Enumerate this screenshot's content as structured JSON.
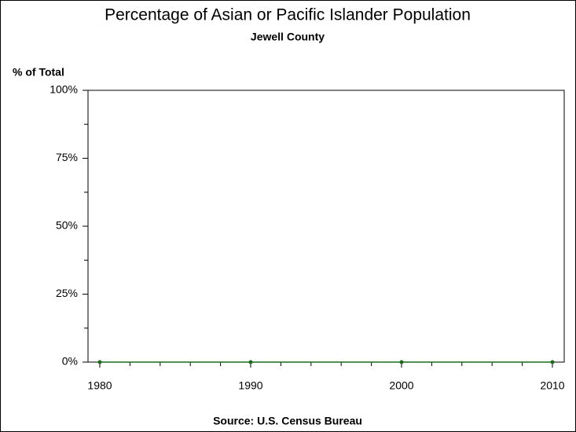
{
  "chart_data": {
    "type": "line",
    "title": "Percentage of Asian or Pacific Islander Population",
    "subtitle": "Jewell County",
    "y_label": "% of Total",
    "source": "Source: U.S. Census Bureau",
    "x": [
      1980,
      1990,
      2000,
      2010
    ],
    "series": [
      {
        "name": "Asian or Pacific Islander",
        "color": "#1a6b1a",
        "values": [
          0,
          0,
          0,
          0
        ]
      }
    ],
    "xlim": [
      1980,
      2010
    ],
    "xticks": [
      1980,
      1990,
      2000,
      2010
    ],
    "xminorticks": [
      1982,
      1984,
      1986,
      1988,
      1992,
      1994,
      1996,
      1998,
      2002,
      2004,
      2006,
      2008
    ],
    "ylim": [
      0,
      100
    ],
    "yticks": [
      {
        "value": 0,
        "label": "0%"
      },
      {
        "value": 25,
        "label": "25%"
      },
      {
        "value": 50,
        "label": "50%"
      },
      {
        "value": 75,
        "label": "75%"
      },
      {
        "value": 100,
        "label": "100%"
      }
    ],
    "yminorticks": [
      12.5,
      37.5,
      62.5,
      87.5
    ],
    "grid": false
  }
}
